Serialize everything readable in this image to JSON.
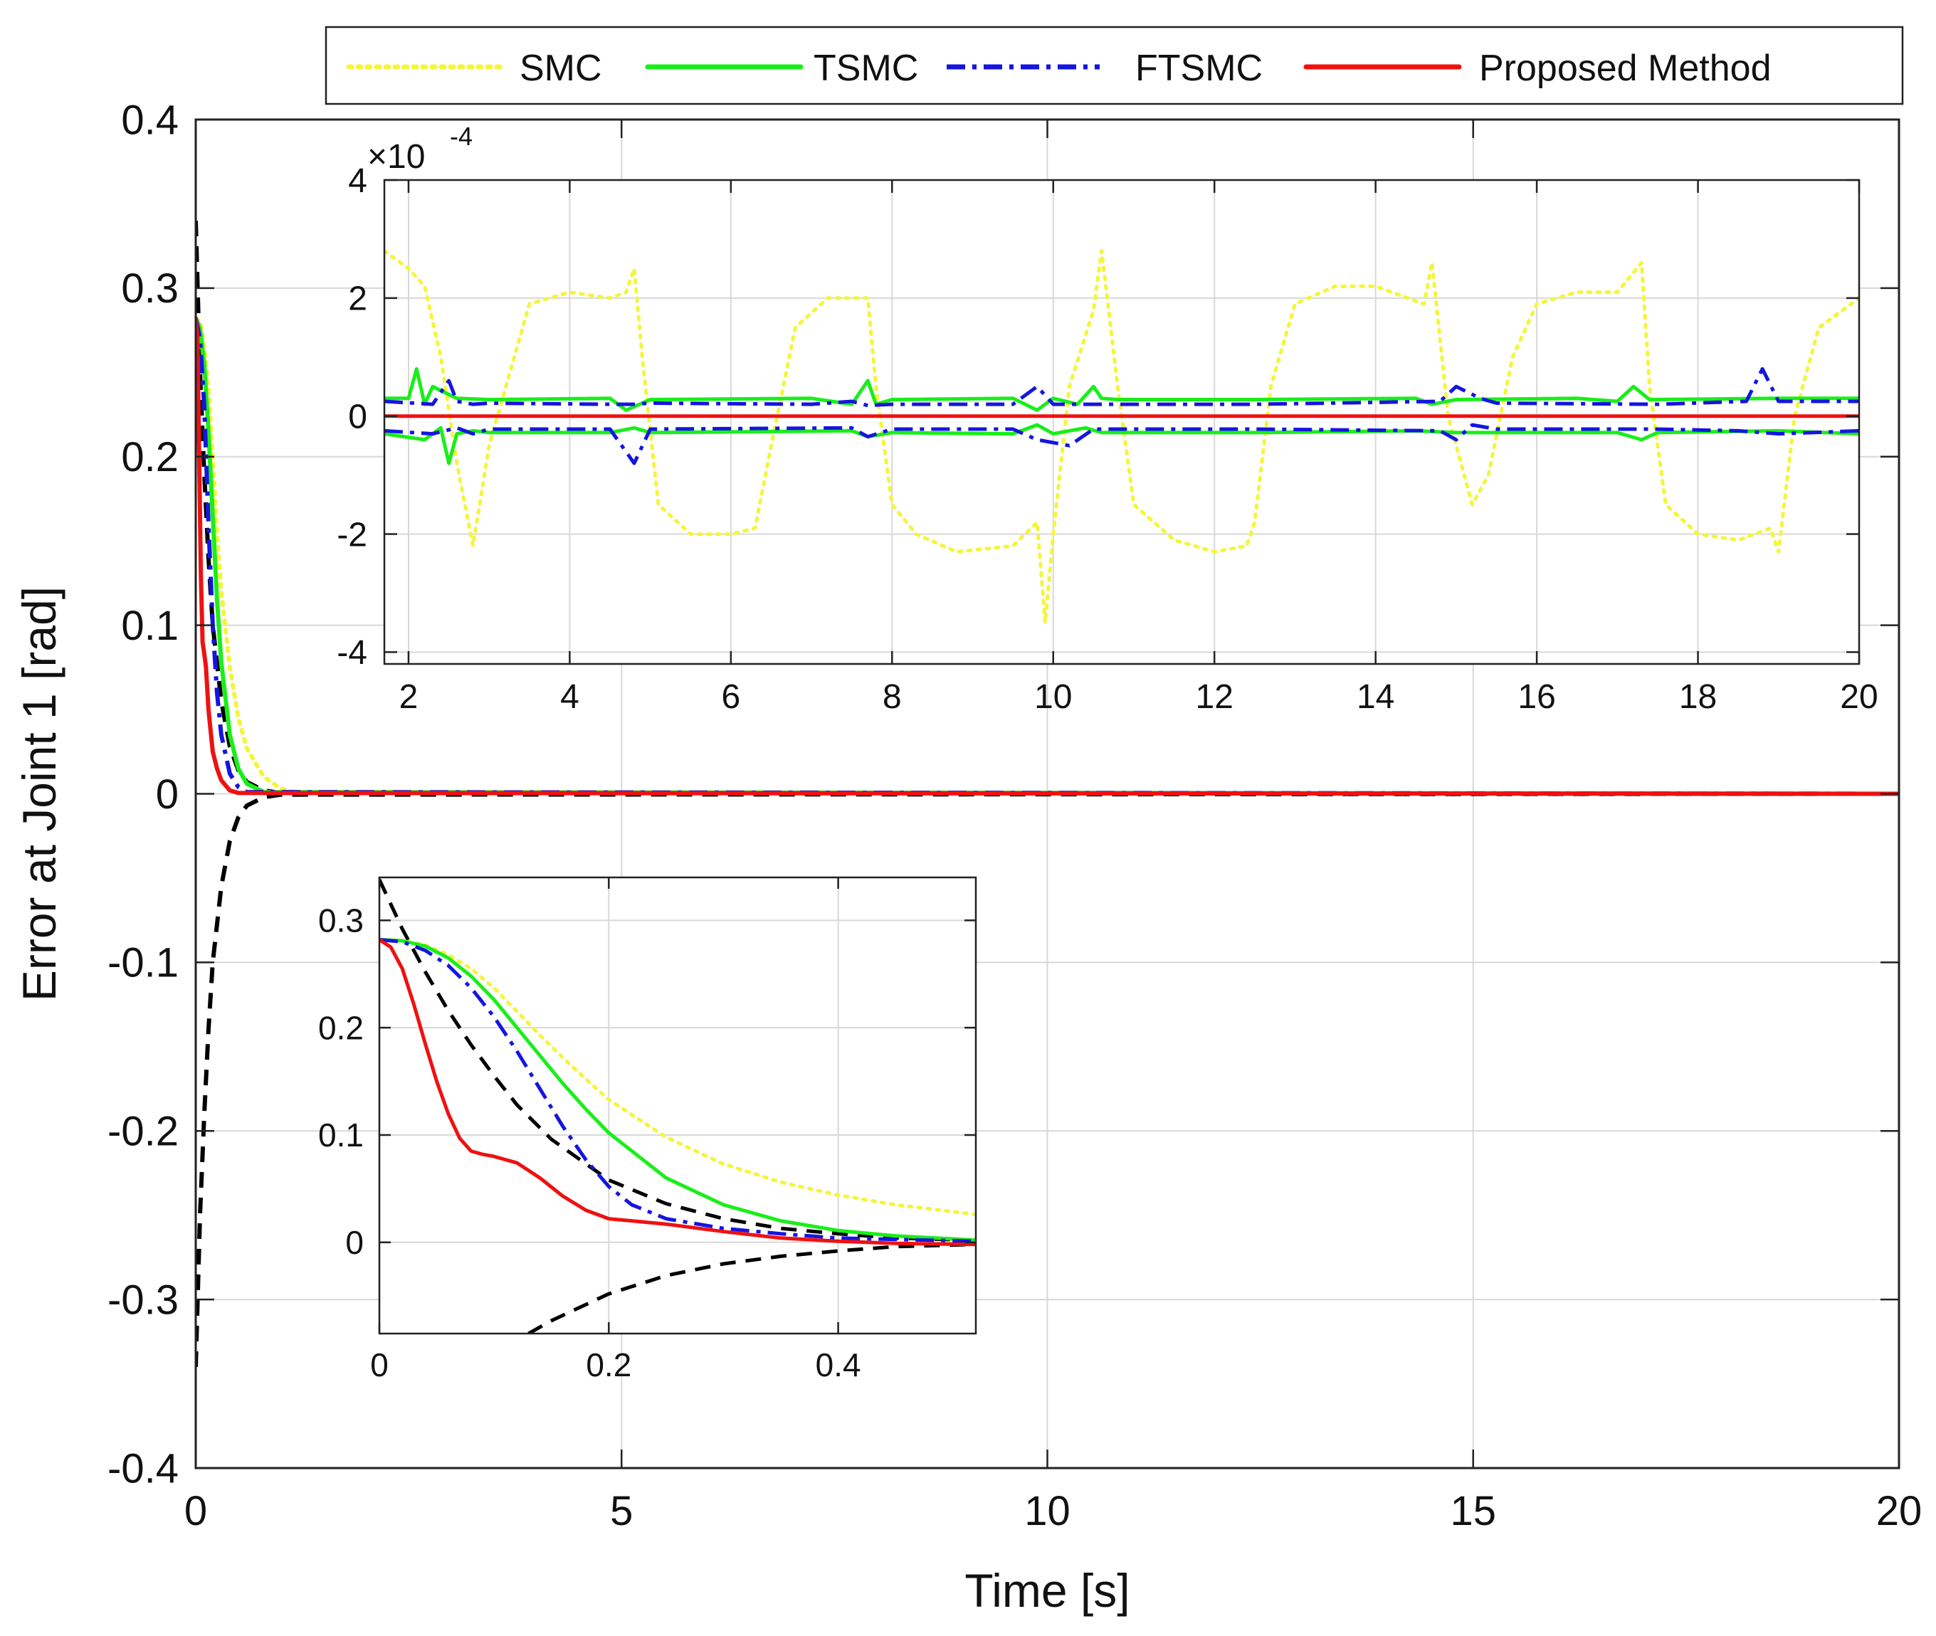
{
  "legend": {
    "entries": [
      {
        "label": "SMC",
        "color": "#f5f53a",
        "dash": "dot"
      },
      {
        "label": "TSMC",
        "color": "#1aee1a",
        "dash": "solid"
      },
      {
        "label": "FTSMC",
        "color": "#1515e0",
        "dash": "dashdot"
      },
      {
        "label": "Proposed Method",
        "color": "#ee1111",
        "dash": "solid"
      }
    ],
    "placement": "top-center, above axes"
  },
  "colors": {
    "smc": "#f5f53a",
    "tsmc": "#1aee1a",
    "ftsmc": "#1515e0",
    "proposed": "#ee1111",
    "bound": "#000000",
    "grid": "#d8d8d8"
  },
  "chart_data": [
    {
      "id": "main",
      "type": "line",
      "xlabel": "Time [s]",
      "ylabel": "Error at Joint 1 [rad]",
      "xlim": [
        0,
        20
      ],
      "ylim": [
        -0.4,
        0.4
      ],
      "xticks": [
        0,
        5,
        10,
        15,
        20
      ],
      "xtick_labels": [
        "0",
        "5",
        "10",
        "15",
        "20"
      ],
      "yticks": [
        -0.4,
        -0.3,
        -0.2,
        -0.1,
        0,
        0.1,
        0.2,
        0.3,
        0.4
      ],
      "ytick_labels": [
        "-0.4",
        "-0.3",
        "-0.2",
        "-0.1",
        "0",
        "0.1",
        "0.2",
        "0.3",
        "0.4"
      ],
      "grid": true,
      "series": [
        {
          "name": "SMC",
          "key": "smc",
          "x": [
            0,
            0.05,
            0.1,
            0.15,
            0.2,
            0.25,
            0.3,
            0.4,
            0.5,
            0.6,
            0.8,
            1.0,
            1.2,
            20
          ],
          "y": [
            0.282,
            0.28,
            0.265,
            0.24,
            0.2,
            0.155,
            0.12,
            0.075,
            0.045,
            0.027,
            0.01,
            0.003,
            0.0005,
            0
          ]
        },
        {
          "name": "TSMC",
          "key": "tsmc",
          "x": [
            0,
            0.05,
            0.1,
            0.15,
            0.2,
            0.25,
            0.3,
            0.4,
            0.5,
            0.6,
            0.8,
            20
          ],
          "y": [
            0.282,
            0.276,
            0.255,
            0.215,
            0.165,
            0.115,
            0.078,
            0.035,
            0.015,
            0.006,
            0.001,
            0
          ]
        },
        {
          "name": "FTSMC",
          "key": "ftsmc",
          "x": [
            0,
            0.05,
            0.1,
            0.15,
            0.2,
            0.25,
            0.3,
            0.4,
            0.5,
            0.6,
            20
          ],
          "y": [
            0.282,
            0.27,
            0.23,
            0.16,
            0.1,
            0.06,
            0.035,
            0.012,
            0.004,
            0.001,
            0
          ]
        },
        {
          "name": "Proposed Method",
          "key": "proposed",
          "x": [
            0,
            0.02,
            0.04,
            0.06,
            0.08,
            0.1,
            0.12,
            0.15,
            0.2,
            0.25,
            0.3,
            0.4,
            0.5,
            20
          ],
          "y": [
            0.282,
            0.27,
            0.2,
            0.13,
            0.09,
            0.083,
            0.075,
            0.05,
            0.025,
            0.015,
            0.008,
            0.002,
            0.0005,
            0
          ]
        },
        {
          "name": "upper bound",
          "key": "bound",
          "x": [
            0,
            0.05,
            0.1,
            0.15,
            0.2,
            0.3,
            0.4,
            0.5,
            0.6,
            0.8,
            1.0,
            20
          ],
          "y": [
            0.34,
            0.25,
            0.19,
            0.14,
            0.1,
            0.055,
            0.028,
            0.014,
            0.007,
            0.002,
            0.0005,
            0
          ]
        },
        {
          "name": "lower bound",
          "key": "bound",
          "x": [
            0,
            0.05,
            0.1,
            0.15,
            0.2,
            0.3,
            0.4,
            0.5,
            0.6,
            0.8,
            1.0,
            20
          ],
          "y": [
            -0.34,
            -0.25,
            -0.19,
            -0.14,
            -0.1,
            -0.055,
            -0.028,
            -0.014,
            -0.007,
            -0.002,
            -0.0005,
            0
          ]
        }
      ]
    },
    {
      "id": "inset_top",
      "type": "line",
      "xlim": [
        1.7,
        20
      ],
      "ylim": [
        -4.2,
        4
      ],
      "y_multiplier": "×10",
      "y_exponent": "-4",
      "xticks": [
        2,
        4,
        6,
        8,
        10,
        12,
        14,
        16,
        18,
        20
      ],
      "xtick_labels": [
        "2",
        "4",
        "6",
        "8",
        "10",
        "12",
        "14",
        "16",
        "18",
        "20"
      ],
      "yticks": [
        -4,
        -2,
        0,
        2,
        4
      ],
      "ytick_labels": [
        "-4",
        "-2",
        "0",
        "2",
        "4"
      ],
      "grid": true,
      "series": [
        {
          "name": "SMC",
          "key": "smc",
          "x": [
            1.7,
            2.0,
            2.2,
            2.4,
            2.6,
            2.8,
            3.0,
            3.5,
            4.0,
            4.5,
            4.7,
            4.8,
            4.9,
            5.1,
            5.5,
            6.0,
            6.3,
            6.5,
            6.8,
            7.2,
            7.7,
            7.8,
            8.0,
            8.3,
            8.8,
            9.5,
            9.8,
            9.9,
            10.0,
            10.2,
            10.5,
            10.6,
            10.8,
            11.0,
            11.5,
            12.0,
            12.4,
            12.5,
            12.7,
            13.0,
            13.5,
            14.0,
            14.6,
            14.7,
            14.9,
            15.2,
            15.4,
            15.7,
            16.0,
            16.5,
            17.0,
            17.3,
            17.4,
            17.6,
            18.0,
            18.5,
            18.9,
            19.0,
            19.2,
            19.5,
            20.0
          ],
          "y": [
            2.8,
            2.5,
            2.2,
            1.0,
            -0.8,
            -2.2,
            -0.5,
            1.9,
            2.1,
            2.0,
            2.1,
            2.5,
            1.0,
            -1.5,
            -2.0,
            -2.0,
            -1.9,
            -0.5,
            1.5,
            2.0,
            2.0,
            0.5,
            -1.5,
            -2.0,
            -2.3,
            -2.2,
            -1.8,
            -3.5,
            -2.0,
            0.5,
            1.8,
            2.8,
            0.5,
            -1.5,
            -2.1,
            -2.3,
            -2.2,
            -1.8,
            0.5,
            1.9,
            2.2,
            2.2,
            1.9,
            2.6,
            0.0,
            -1.5,
            -1.0,
            1.0,
            1.9,
            2.1,
            2.1,
            2.6,
            0.5,
            -1.5,
            -2.0,
            -2.1,
            -1.9,
            -2.3,
            0.0,
            1.5,
            2.0
          ]
        },
        {
          "name": "TSMC+",
          "key": "tsmc",
          "x": [
            1.7,
            2.0,
            2.1,
            2.2,
            2.3,
            2.6,
            3.0,
            4.5,
            4.7,
            5.0,
            7.0,
            7.5,
            7.7,
            7.8,
            8.0,
            9.5,
            9.8,
            10.0,
            10.3,
            10.5,
            10.6,
            10.8,
            12.5,
            14.5,
            14.7,
            15.0,
            16.5,
            17.0,
            17.2,
            17.4,
            19.0,
            20.0
          ],
          "y": [
            0.3,
            0.3,
            0.8,
            0.2,
            0.5,
            0.3,
            0.28,
            0.3,
            0.1,
            0.28,
            0.3,
            0.2,
            0.6,
            0.2,
            0.28,
            0.3,
            0.1,
            0.3,
            0.2,
            0.5,
            0.3,
            0.28,
            0.28,
            0.3,
            0.2,
            0.28,
            0.3,
            0.25,
            0.5,
            0.28,
            0.3,
            0.3
          ]
        },
        {
          "name": "TSMC-",
          "key": "tsmc",
          "x": [
            1.7,
            2.2,
            2.4,
            2.5,
            2.6,
            2.8,
            3.0,
            4.5,
            4.8,
            5.0,
            7.5,
            7.7,
            8.0,
            9.5,
            9.8,
            10.0,
            10.4,
            10.6,
            12.5,
            14.5,
            15.0,
            17.0,
            17.3,
            17.5,
            19.0,
            20.0
          ],
          "y": [
            -0.3,
            -0.4,
            -0.2,
            -0.8,
            -0.3,
            -0.25,
            -0.28,
            -0.28,
            -0.2,
            -0.28,
            -0.25,
            -0.35,
            -0.28,
            -0.3,
            -0.15,
            -0.3,
            -0.2,
            -0.28,
            -0.28,
            -0.25,
            -0.28,
            -0.28,
            -0.4,
            -0.28,
            -0.25,
            -0.3
          ]
        },
        {
          "name": "FTSMC+",
          "key": "ftsmc",
          "x": [
            1.7,
            2.3,
            2.5,
            2.6,
            2.8,
            3.0,
            4.5,
            4.8,
            5.0,
            7.0,
            7.5,
            7.7,
            8.0,
            9.5,
            9.8,
            10.0,
            10.5,
            12.5,
            14.8,
            15.0,
            15.3,
            15.5,
            17.5,
            18.6,
            18.8,
            19.0,
            20.0
          ],
          "y": [
            0.25,
            0.2,
            0.6,
            0.25,
            0.2,
            0.22,
            0.2,
            0.2,
            0.22,
            0.2,
            0.25,
            0.18,
            0.2,
            0.2,
            0.5,
            0.2,
            0.2,
            0.2,
            0.25,
            0.5,
            0.3,
            0.22,
            0.2,
            0.25,
            0.8,
            0.25,
            0.25
          ]
        },
        {
          "name": "FTSMC-",
          "key": "ftsmc",
          "x": [
            1.7,
            2.3,
            2.6,
            2.8,
            3.0,
            4.5,
            4.8,
            5.0,
            7.5,
            7.7,
            8.0,
            9.5,
            9.8,
            10.2,
            10.5,
            12.5,
            14.8,
            15.0,
            15.2,
            15.5,
            17.5,
            18.5,
            19.0,
            20.0
          ],
          "y": [
            -0.25,
            -0.3,
            -0.2,
            -0.3,
            -0.22,
            -0.22,
            -0.8,
            -0.22,
            -0.2,
            -0.35,
            -0.22,
            -0.22,
            -0.4,
            -0.5,
            -0.22,
            -0.22,
            -0.25,
            -0.4,
            -0.15,
            -0.22,
            -0.22,
            -0.25,
            -0.3,
            -0.25
          ]
        },
        {
          "name": "Proposed Method",
          "key": "proposed",
          "x": [
            1.7,
            20.0
          ],
          "y": [
            0,
            0
          ]
        }
      ]
    },
    {
      "id": "inset_bottom",
      "type": "line",
      "xlim": [
        0,
        0.52
      ],
      "ylim": [
        -0.085,
        0.34
      ],
      "xticks": [
        0,
        0.2,
        0.4
      ],
      "xtick_labels": [
        "0",
        "0.2",
        "0.4"
      ],
      "yticks": [
        0,
        0.1,
        0.2,
        0.3
      ],
      "ytick_labels": [
        "0",
        "0.1",
        "0.2",
        "0.3"
      ],
      "grid": true,
      "series": [
        {
          "name": "SMC",
          "key": "smc",
          "x": [
            0,
            0.02,
            0.04,
            0.06,
            0.08,
            0.1,
            0.12,
            0.14,
            0.16,
            0.18,
            0.2,
            0.25,
            0.3,
            0.35,
            0.4,
            0.45,
            0.52
          ],
          "y": [
            0.282,
            0.281,
            0.277,
            0.268,
            0.255,
            0.237,
            0.215,
            0.193,
            0.172,
            0.152,
            0.133,
            0.098,
            0.073,
            0.056,
            0.044,
            0.035,
            0.026
          ]
        },
        {
          "name": "TSMC",
          "key": "tsmc",
          "x": [
            0,
            0.02,
            0.04,
            0.06,
            0.08,
            0.1,
            0.12,
            0.14,
            0.16,
            0.18,
            0.2,
            0.25,
            0.3,
            0.35,
            0.4,
            0.45,
            0.52
          ],
          "y": [
            0.282,
            0.281,
            0.276,
            0.265,
            0.248,
            0.226,
            0.2,
            0.174,
            0.148,
            0.124,
            0.102,
            0.06,
            0.035,
            0.02,
            0.011,
            0.006,
            0.002
          ]
        },
        {
          "name": "FTSMC",
          "key": "ftsmc",
          "x": [
            0,
            0.02,
            0.04,
            0.06,
            0.08,
            0.1,
            0.12,
            0.14,
            0.16,
            0.18,
            0.2,
            0.22,
            0.25,
            0.3,
            0.35,
            0.4,
            0.52
          ],
          "y": [
            0.282,
            0.28,
            0.272,
            0.258,
            0.237,
            0.21,
            0.178,
            0.143,
            0.108,
            0.077,
            0.052,
            0.035,
            0.022,
            0.013,
            0.008,
            0.004,
            0.001
          ]
        },
        {
          "name": "Proposed Method",
          "key": "proposed",
          "x": [
            0,
            0.01,
            0.02,
            0.03,
            0.04,
            0.05,
            0.06,
            0.07,
            0.08,
            0.09,
            0.1,
            0.12,
            0.14,
            0.16,
            0.18,
            0.2,
            0.25,
            0.3,
            0.35,
            0.4,
            0.45,
            0.52
          ],
          "y": [
            0.282,
            0.275,
            0.255,
            0.222,
            0.185,
            0.15,
            0.12,
            0.097,
            0.085,
            0.082,
            0.08,
            0.074,
            0.06,
            0.043,
            0.03,
            0.022,
            0.017,
            0.01,
            0.004,
            0.001,
            -0.001,
            -0.002
          ]
        },
        {
          "name": "upper bound",
          "key": "bound",
          "x": [
            0,
            0.02,
            0.04,
            0.06,
            0.08,
            0.1,
            0.12,
            0.15,
            0.2,
            0.25,
            0.3,
            0.35,
            0.4,
            0.45,
            0.52
          ],
          "y": [
            0.338,
            0.292,
            0.252,
            0.216,
            0.184,
            0.155,
            0.128,
            0.096,
            0.058,
            0.036,
            0.022,
            0.013,
            0.008,
            0.004,
            0.002
          ]
        },
        {
          "name": "lower bound",
          "key": "bound",
          "x": [
            0.13,
            0.15,
            0.2,
            0.25,
            0.3,
            0.35,
            0.4,
            0.45,
            0.52
          ],
          "y": [
            -0.085,
            -0.073,
            -0.048,
            -0.031,
            -0.02,
            -0.013,
            -0.008,
            -0.004,
            -0.002
          ]
        }
      ]
    }
  ]
}
